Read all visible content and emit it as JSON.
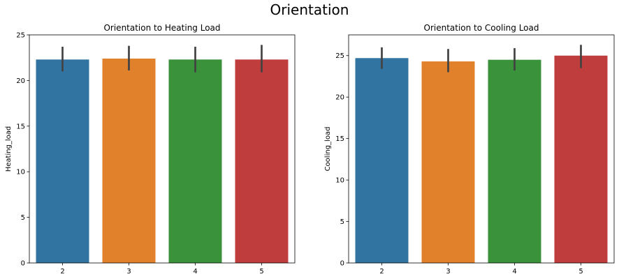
{
  "figure_title": "Orientation",
  "chart_data": [
    {
      "type": "bar",
      "title": "Orientation to Heating Load",
      "xlabel": "",
      "ylabel": "Heating_load",
      "categories": [
        "2",
        "3",
        "4",
        "5"
      ],
      "values": [
        22.3,
        22.4,
        22.3,
        22.3
      ],
      "error_low": [
        21.0,
        21.1,
        20.9,
        20.9
      ],
      "error_high": [
        23.7,
        23.8,
        23.7,
        23.9
      ],
      "ylim": [
        0,
        25
      ],
      "yticks": [
        0,
        5,
        10,
        15,
        20,
        25
      ],
      "colors": [
        "#3274a1",
        "#e1812c",
        "#3a923a",
        "#c03d3e"
      ],
      "grid": false,
      "legend": "none"
    },
    {
      "type": "bar",
      "title": "Orientation to Cooling Load",
      "xlabel": "",
      "ylabel": "Cooling_load",
      "categories": [
        "2",
        "3",
        "4",
        "5"
      ],
      "values": [
        24.7,
        24.3,
        24.5,
        25.0
      ],
      "error_low": [
        23.4,
        23.0,
        23.2,
        23.5
      ],
      "error_high": [
        26.0,
        25.8,
        25.9,
        26.3
      ],
      "ylim": [
        0,
        27.5
      ],
      "yticks": [
        0,
        5,
        10,
        15,
        20,
        25
      ],
      "colors": [
        "#3274a1",
        "#e1812c",
        "#3a923a",
        "#c03d3e"
      ],
      "grid": false,
      "legend": "none"
    }
  ]
}
